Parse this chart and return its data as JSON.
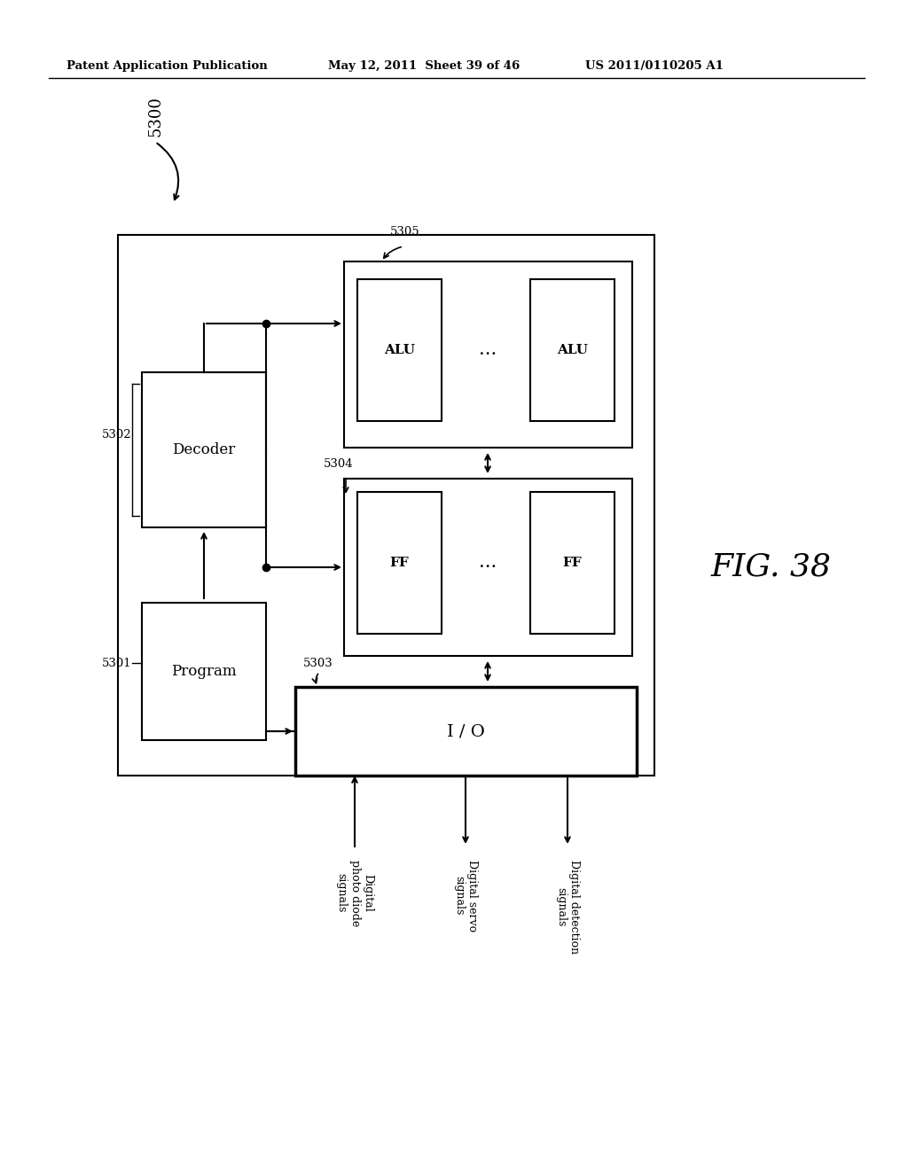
{
  "title_left": "Patent Application Publication",
  "title_center": "May 12, 2011  Sheet 39 of 46",
  "title_right": "US 2011/0110205 A1",
  "fig_label": "FIG. 38",
  "label_5300": "5300",
  "label_5301": "5301",
  "label_5302": "5302",
  "label_5303": "5303",
  "label_5304": "5304",
  "label_5305": "5305",
  "background_color": "#ffffff",
  "text_color": "#000000"
}
